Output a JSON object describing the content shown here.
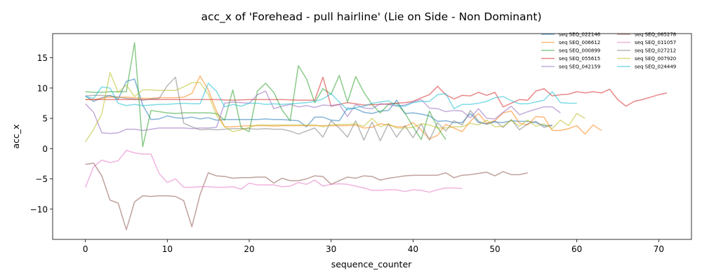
{
  "chart_data": {
    "type": "line",
    "title": "acc_x of 'Forehead - pull hairline' (Lie on Side - Non Dominant)",
    "xlabel": "sequence_counter",
    "ylabel": "acc_x",
    "xlim": [
      -4,
      74
    ],
    "ylim": [
      -15,
      19
    ],
    "xticks": [
      0,
      10,
      20,
      30,
      40,
      50,
      60,
      70
    ],
    "yticks": [
      -10,
      -5,
      0,
      5,
      10,
      15
    ],
    "grid": false,
    "legend_position": "top-right",
    "series": [
      {
        "name": "seq SEQ_022146",
        "color": "#1f77b4",
        "x": [
          0,
          1,
          2,
          3,
          4,
          5,
          6,
          7,
          8,
          9,
          10,
          11,
          12,
          13,
          14,
          15,
          16,
          17,
          18,
          19,
          20,
          21,
          22,
          23,
          24,
          25,
          26,
          27,
          28,
          29,
          30,
          31,
          32,
          33,
          34,
          35,
          36,
          37,
          38,
          39,
          40,
          41,
          42,
          43,
          44,
          45,
          46,
          47,
          48,
          49,
          50,
          51,
          52,
          53,
          54,
          55,
          56,
          57
        ],
        "y": [
          8.7,
          7.8,
          8.4,
          8.8,
          8.2,
          11.1,
          11.5,
          7.2,
          4.8,
          4.9,
          5.4,
          5.1,
          5.0,
          5.2,
          4.9,
          5.1,
          4.7,
          4.8,
          4.8,
          4.8,
          4.8,
          4.8,
          4.9,
          4.8,
          4.8,
          4.7,
          4.6,
          3.6,
          5.2,
          5.2,
          4.7,
          4.6,
          6.7,
          6.6,
          6.0,
          5.8,
          6.2,
          6.3,
          8.0,
          5.8,
          5.9,
          5.7,
          5.4,
          4.5,
          4.6,
          4.3,
          4.3,
          5.8,
          4.3,
          4.1,
          4.4,
          4.3,
          4.6,
          4.5,
          4.5,
          4.3,
          3.8,
          3.8
        ]
      },
      {
        "name": "seq SEQ_006612",
        "color": "#ff7f0e",
        "x": [
          0,
          1,
          2,
          3,
          4,
          5,
          6,
          7,
          8,
          9,
          10,
          11,
          12,
          13,
          14,
          15,
          16,
          17,
          18,
          19,
          20,
          21,
          22,
          23,
          24,
          25,
          26,
          27,
          28,
          29,
          30,
          31,
          32,
          33,
          34,
          35,
          36,
          37,
          38,
          39,
          40,
          41,
          42,
          43,
          44,
          45,
          46,
          47,
          48,
          49,
          50,
          51,
          52,
          53,
          54,
          55,
          56,
          57,
          58,
          59,
          60,
          61,
          62,
          63
        ],
        "y": [
          8.1,
          8.1,
          8.3,
          8.5,
          8.5,
          8.5,
          8.4,
          8.3,
          8.3,
          8.4,
          8.4,
          8.4,
          8.5,
          9.1,
          12.0,
          9.7,
          6.2,
          3.6,
          3.6,
          3.7,
          3.8,
          3.8,
          3.8,
          3.7,
          3.8,
          3.8,
          3.8,
          3.8,
          3.8,
          3.8,
          3.8,
          3.8,
          3.8,
          3.9,
          3.4,
          3.5,
          4.1,
          3.9,
          3.6,
          3.6,
          4.3,
          3.1,
          1.6,
          2.2,
          4.0,
          3.4,
          2.8,
          4.5,
          5.8,
          4.2,
          4.6,
          5.9,
          6.2,
          4.2,
          3.9,
          5.3,
          5.2,
          3.0,
          3.0,
          3.3,
          3.8,
          2.4,
          3.9,
          3.0
        ]
      },
      {
        "name": "seq SEQ_000899",
        "color": "#2ca02c",
        "x": [
          0,
          1,
          2,
          3,
          4,
          5,
          6,
          7,
          8,
          9,
          10,
          11,
          12,
          13,
          14,
          15,
          16,
          17,
          18,
          19,
          20,
          21,
          22,
          23,
          24,
          25,
          26,
          27,
          28,
          29,
          30,
          31,
          32,
          33,
          34,
          35,
          36,
          37,
          38,
          39,
          40,
          41,
          42,
          43,
          44
        ],
        "y": [
          9.4,
          9.3,
          9.3,
          9.4,
          9.4,
          9.4,
          17.5,
          0.3,
          6.3,
          6.1,
          5.9,
          5.8,
          5.9,
          5.9,
          5.9,
          5.9,
          5.8,
          4.7,
          9.7,
          3.5,
          2.8,
          9.5,
          10.8,
          9.3,
          6.4,
          4.6,
          13.7,
          11.5,
          7.6,
          9.9,
          9.0,
          12.1,
          7.7,
          11.9,
          9.3,
          7.3,
          5.9,
          7.3,
          7.5,
          5.9,
          3.6,
          1.5,
          6.2,
          3.5,
          1.5
        ]
      },
      {
        "name": "seq SEQ_055615",
        "color": "#d62728",
        "x": [
          0,
          2,
          4,
          6,
          8,
          10,
          12,
          14,
          16,
          18,
          20,
          22,
          24,
          26,
          28,
          29,
          30,
          32,
          34,
          36,
          38,
          39,
          40,
          41,
          42,
          43,
          44,
          45,
          46,
          47,
          48,
          49,
          50,
          51,
          52,
          53,
          54,
          55,
          56,
          57,
          58,
          59,
          60,
          61,
          62,
          63,
          64,
          65,
          66,
          67,
          68,
          69,
          70,
          71
        ],
        "y": [
          8.1,
          8.1,
          8.1,
          8.1,
          8.1,
          8.1,
          8.1,
          8.1,
          8.1,
          8.0,
          8.1,
          8.1,
          8.1,
          8.0,
          8.0,
          11.8,
          7.0,
          7.6,
          7.2,
          7.3,
          7.5,
          7.6,
          7.8,
          8.4,
          8.9,
          10.3,
          8.9,
          8.2,
          8.8,
          8.7,
          9.3,
          8.8,
          9.3,
          6.9,
          7.5,
          8.1,
          8.0,
          9.5,
          9.9,
          8.7,
          8.9,
          9.0,
          9.4,
          9.2,
          9.4,
          9.2,
          9.8,
          8.1,
          7.0,
          7.8,
          8.1,
          8.5,
          8.9,
          9.2
        ]
      },
      {
        "name": "seq SEQ_042159",
        "color": "#9467bd",
        "x": [
          0,
          1,
          2,
          3,
          4,
          5,
          6,
          7,
          8,
          9,
          10,
          11,
          12,
          13,
          14,
          15,
          16,
          17,
          18,
          19,
          20,
          21,
          22,
          23,
          24,
          25,
          26,
          27,
          28,
          29,
          30,
          31,
          32,
          33,
          34,
          35,
          36,
          37,
          38,
          39,
          40,
          41,
          42,
          43,
          44,
          45,
          46,
          47,
          48,
          49,
          50,
          51,
          52,
          53,
          54,
          55,
          56,
          57,
          58
        ],
        "y": [
          7.4,
          6.0,
          2.6,
          2.5,
          2.6,
          3.2,
          3.2,
          3.0,
          3.2,
          3.4,
          3.4,
          3.4,
          3.4,
          3.3,
          3.4,
          3.4,
          3.5,
          7.5,
          7.7,
          7.6,
          7.5,
          8.9,
          9.5,
          6.6,
          7.0,
          7.3,
          6.9,
          7.1,
          6.8,
          7.2,
          7.1,
          7.3,
          5.3,
          7.3,
          6.7,
          6.6,
          7.4,
          7.3,
          7.0,
          7.2,
          7.7,
          8.1,
          6.7,
          6.6,
          6.1,
          6.3,
          6.2,
          5.1,
          6.6,
          5.0,
          4.9,
          6.0,
          7.0,
          5.6,
          6.1,
          6.5,
          6.9,
          6.9,
          5.9
        ]
      },
      {
        "name": "seq SEQ_065278",
        "color": "#8c564b",
        "x": [
          0,
          1,
          2,
          3,
          4,
          5,
          6,
          7,
          8,
          9,
          10,
          11,
          12,
          13,
          14,
          15,
          16,
          17,
          18,
          19,
          20,
          21,
          22,
          23,
          24,
          25,
          26,
          27,
          28,
          29,
          30,
          31,
          32,
          33,
          34,
          35,
          36,
          37,
          38,
          39,
          40,
          41,
          42,
          43,
          44,
          45,
          46,
          47,
          48,
          49,
          50,
          51,
          52,
          53,
          54
        ],
        "y": [
          -2.6,
          -2.4,
          -4.5,
          -8.5,
          -9.0,
          -13.4,
          -8.8,
          -7.8,
          -7.9,
          -7.8,
          -7.8,
          -7.9,
          -8.6,
          -12.9,
          -7.6,
          -4.0,
          -4.5,
          -4.6,
          -4.9,
          -4.8,
          -4.8,
          -4.7,
          -4.7,
          -5.7,
          -4.9,
          -5.3,
          -5.3,
          -5.0,
          -4.5,
          -4.6,
          -5.9,
          -5.3,
          -4.7,
          -4.9,
          -4.5,
          -4.6,
          -5.2,
          -4.9,
          -4.7,
          -4.5,
          -4.4,
          -4.4,
          -4.4,
          -4.4,
          -4.0,
          -4.8,
          -4.4,
          -4.3,
          -4.1,
          -3.9,
          -4.5,
          -3.8,
          -4.3,
          -4.3,
          -4.0
        ]
      },
      {
        "name": "seq SEQ_011057",
        "color": "#e377c2",
        "x": [
          0,
          1,
          2,
          3,
          4,
          5,
          6,
          7,
          8,
          9,
          10,
          11,
          12,
          13,
          14,
          15,
          16,
          17,
          18,
          19,
          20,
          21,
          22,
          23,
          24,
          25,
          26,
          27,
          28,
          29,
          30,
          31,
          32,
          33,
          34,
          35,
          36,
          37,
          38,
          39,
          40,
          41,
          42,
          43,
          44,
          45,
          46
        ],
        "y": [
          -6.4,
          -3.0,
          -1.9,
          -2.3,
          -2.0,
          -0.3,
          -0.7,
          -0.9,
          -0.9,
          -4.1,
          -5.6,
          -5.0,
          -6.4,
          -6.4,
          -6.3,
          -6.3,
          -6.4,
          -6.4,
          -6.3,
          -6.7,
          -5.7,
          -6.0,
          -6.0,
          -6.0,
          -6.3,
          -6.2,
          -5.6,
          -5.9,
          -5.2,
          -6.2,
          -5.9,
          -5.8,
          -5.9,
          -6.2,
          -6.5,
          -6.9,
          -6.9,
          -6.8,
          -6.8,
          -7.1,
          -6.8,
          -6.9,
          -7.2,
          -6.8,
          -6.5,
          -6.5,
          -6.6
        ]
      },
      {
        "name": "seq SEQ_027212",
        "color": "#7f7f7f",
        "x": [
          0,
          1,
          2,
          3,
          4,
          5,
          6,
          7,
          8,
          9,
          10,
          11,
          12,
          13,
          14,
          15,
          16,
          17,
          18,
          19,
          20,
          21,
          22,
          23,
          24,
          25,
          26,
          27,
          28,
          29,
          30,
          31,
          32,
          33,
          34,
          35,
          36,
          37,
          38,
          39,
          40,
          41,
          42,
          43,
          44,
          45,
          46,
          47,
          48,
          49,
          50,
          51,
          52,
          53,
          54,
          55,
          56,
          57
        ],
        "y": [
          8.7,
          8.8,
          8.8,
          8.7,
          8.5,
          8.3,
          8.2,
          8.0,
          8.2,
          8.3,
          10.4,
          11.8,
          4.2,
          3.6,
          3.1,
          3.2,
          3.1,
          3.2,
          3.3,
          3.3,
          3.3,
          3.2,
          3.3,
          3.2,
          3.2,
          2.9,
          2.4,
          2.9,
          3.4,
          1.9,
          4.6,
          3.4,
          1.9,
          4.6,
          1.4,
          4.4,
          1.3,
          4.1,
          1.9,
          3.8,
          1.8,
          4.1,
          1.4,
          4.3,
          2.9,
          4.6,
          3.9,
          6.3,
          4.5,
          4.0,
          4.6,
          3.5,
          4.8,
          3.1,
          4.1,
          4.5,
          3.5,
          3.9
        ]
      },
      {
        "name": "seq SEQ_007920",
        "color": "#bcbd22",
        "x": [
          0,
          1,
          2,
          3,
          4,
          5,
          6,
          7,
          8,
          9,
          10,
          11,
          12,
          13,
          14,
          15,
          16,
          17,
          18,
          19,
          20,
          21,
          22,
          23,
          24,
          25,
          26,
          27,
          28,
          29,
          30,
          31,
          32,
          33,
          34,
          35,
          36,
          37,
          38,
          39,
          40,
          41,
          42,
          43,
          44,
          45,
          46,
          47,
          48,
          49,
          50,
          51,
          52,
          53,
          54,
          55,
          56,
          57,
          58,
          59,
          60,
          61
        ],
        "y": [
          1.1,
          3.2,
          5.7,
          12.6,
          9.3,
          10.5,
          8.6,
          9.7,
          9.7,
          9.6,
          9.6,
          9.6,
          10.2,
          10.9,
          10.9,
          9.0,
          5.5,
          3.6,
          2.8,
          3.1,
          3.5,
          3.9,
          3.9,
          3.9,
          3.9,
          3.9,
          3.9,
          3.9,
          3.9,
          3.6,
          3.9,
          4.0,
          4.0,
          4.1,
          3.7,
          5.0,
          3.6,
          4.1,
          3.4,
          3.4,
          3.5,
          4.1,
          3.9,
          3.4,
          3.4,
          3.6,
          3.6,
          4.2,
          3.9,
          4.7,
          3.6,
          3.7,
          4.7,
          3.7,
          4.7,
          3.7,
          4.1,
          3.3,
          4.7,
          3.8,
          5.8,
          5.0
        ]
      },
      {
        "name": "seq SEQ_024449",
        "color": "#17becf",
        "x": [
          0,
          1,
          2,
          3,
          4,
          5,
          6,
          7,
          8,
          9,
          10,
          11,
          12,
          13,
          14,
          15,
          16,
          17,
          18,
          19,
          20,
          21,
          22,
          23,
          24,
          25,
          26,
          27,
          28,
          29,
          30,
          31,
          32,
          33,
          34,
          35,
          36,
          37,
          38,
          39,
          40,
          41,
          42,
          43,
          44,
          45,
          46,
          47,
          48,
          49,
          50,
          51,
          52,
          53,
          54,
          55,
          56,
          57,
          58,
          59,
          60
        ],
        "y": [
          8.6,
          8.3,
          10.2,
          10.0,
          7.5,
          7.1,
          7.3,
          7.1,
          7.2,
          7.3,
          7.3,
          7.4,
          7.5,
          7.4,
          7.4,
          10.8,
          9.5,
          6.9,
          7.3,
          7.0,
          7.5,
          7.5,
          7.3,
          7.4,
          7.3,
          7.4,
          7.5,
          7.6,
          7.8,
          8.2,
          9.1,
          7.7,
          6.4,
          6.8,
          7.0,
          7.5,
          7.7,
          7.9,
          7.1,
          7.0,
          7.6,
          7.8,
          7.8,
          8.9,
          9.1,
          6.6,
          7.3,
          7.3,
          7.5,
          7.8,
          8.4,
          8.6,
          7.9,
          7.4,
          7.4,
          7.7,
          8.0,
          9.4,
          7.6,
          7.5,
          7.5
        ]
      }
    ]
  }
}
